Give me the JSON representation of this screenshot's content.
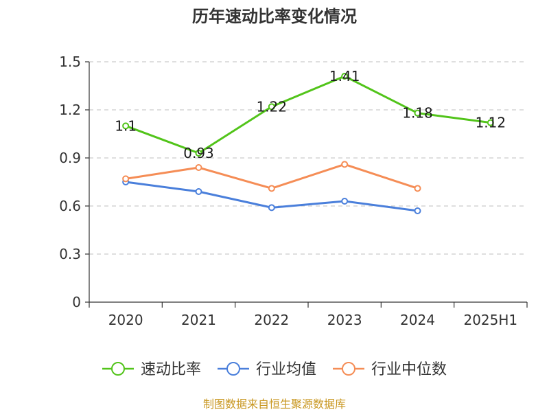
{
  "chart_data": {
    "type": "line",
    "title": "历年速动比率变化情况",
    "categories": [
      "2020",
      "2021",
      "2022",
      "2023",
      "2024",
      "2025H1"
    ],
    "ylim": [
      0,
      1.5
    ],
    "yticks": [
      "0",
      "0.3",
      "0.6",
      "0.9",
      "1.2",
      "1.5"
    ],
    "grid": true,
    "legend_position": "bottom",
    "series": [
      {
        "name": "速动比率",
        "color": "#52c41a",
        "values": [
          1.1,
          0.93,
          1.22,
          1.41,
          1.18,
          1.12
        ],
        "labels": [
          "1.1",
          "0.93",
          "1.22",
          "1.41",
          "1.18",
          "1.12"
        ]
      },
      {
        "name": "行业均值",
        "color": "#4a7fdb",
        "values": [
          0.75,
          0.69,
          0.59,
          0.63,
          0.57,
          null
        ]
      },
      {
        "name": "行业中位数",
        "color": "#f58d56",
        "values": [
          0.77,
          0.84,
          0.71,
          0.86,
          0.71,
          null
        ]
      }
    ],
    "source": "制图数据来自恒生聚源数据库"
  }
}
